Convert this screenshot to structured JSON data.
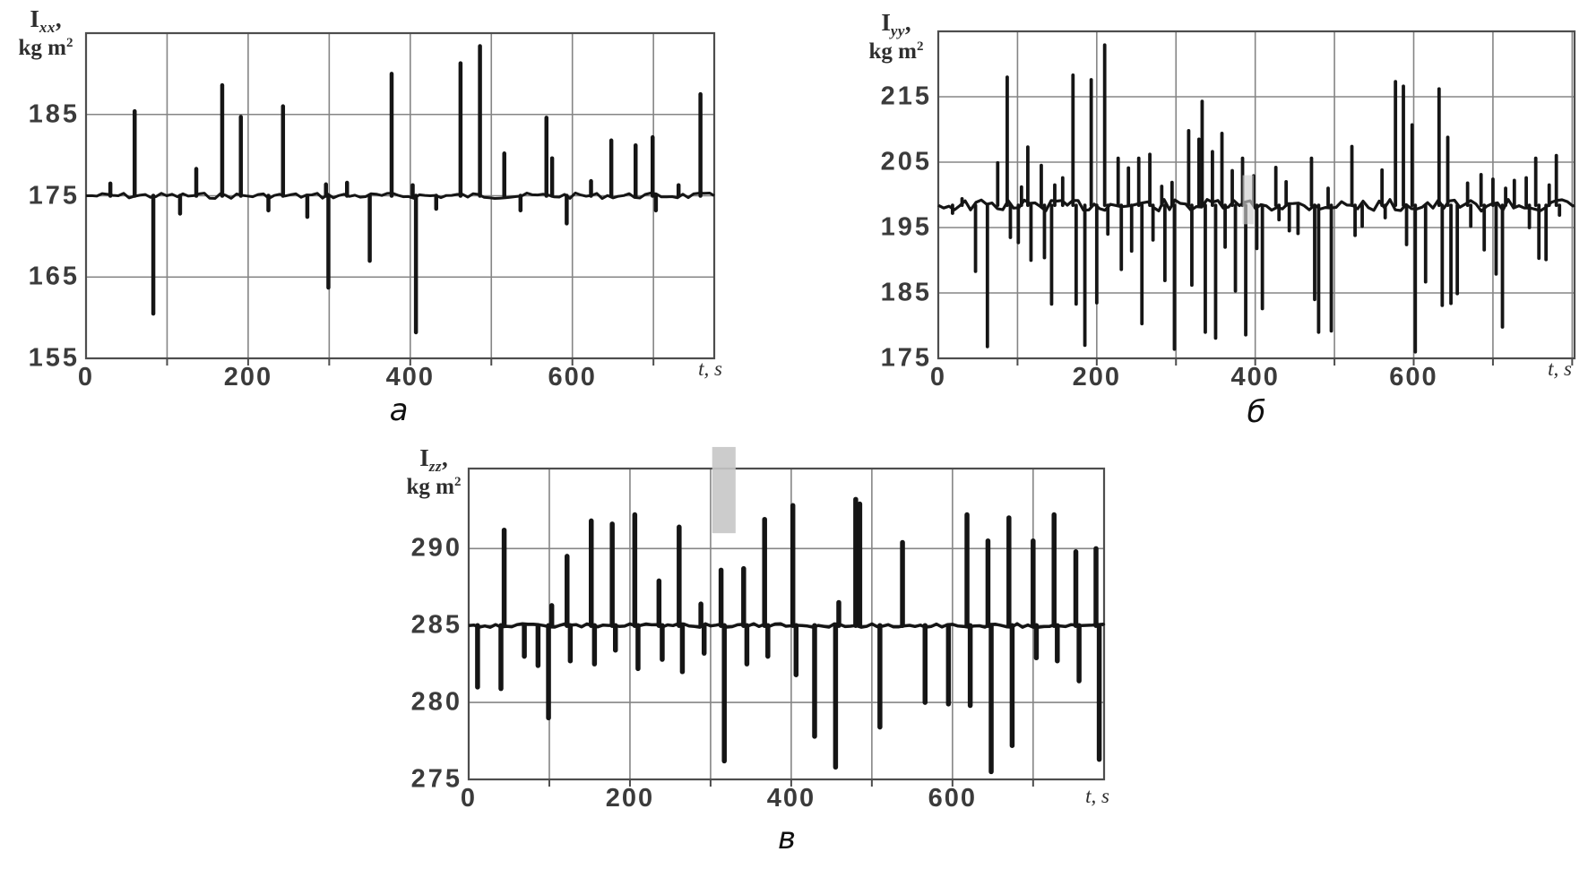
{
  "figure": {
    "background": "#ffffff"
  },
  "charts": [
    {
      "id": "a",
      "caption": "a",
      "xlabel": "t, s",
      "ylabel": {
        "base": "I",
        "sub": "xx",
        "comma": ",",
        "unit": "kg m",
        "unit_sup": "2"
      }
    },
    {
      "id": "b",
      "caption": "б",
      "xlabel": "t, s",
      "ylabel": {
        "base": "I",
        "sub": "yy",
        "comma": ",",
        "unit": "kg m",
        "unit_sup": "2"
      }
    },
    {
      "id": "v",
      "caption": "в",
      "xlabel": "t, s",
      "ylabel": {
        "base": "I",
        "sub": "zz",
        "comma": ",",
        "unit": "kg m",
        "unit_sup": "2"
      }
    }
  ],
  "colors": {
    "line": "#151515",
    "grid": "#858585",
    "border": "#4d4d4d",
    "tick_text": "#3b3b3b",
    "artifact_gray": "#c6c6c6"
  },
  "chart_data": [
    {
      "panel": "a",
      "type": "line",
      "signal": "Ixx",
      "units": "kg m^2",
      "xlabel": "t, s",
      "ylabel": "Ixx, kg m2",
      "xlim": [
        0,
        775
      ],
      "ylim": [
        155,
        195
      ],
      "x_gridlines": [
        100,
        200,
        300,
        400,
        500,
        600,
        700
      ],
      "y_gridlines": [
        165,
        175,
        185
      ],
      "x_ticks": [
        {
          "t": 0,
          "label": "0"
        },
        {
          "t": 200,
          "label": "200"
        },
        {
          "t": 400,
          "label": "400"
        },
        {
          "t": 600,
          "label": "600"
        }
      ],
      "y_ticks": [
        {
          "v": 155,
          "label": "155"
        },
        {
          "v": 165,
          "label": "165"
        },
        {
          "v": 175,
          "label": "175"
        },
        {
          "v": 185,
          "label": "185"
        }
      ],
      "baseline": 175,
      "noise_amp": 0.35,
      "seed": 7,
      "artifact": null,
      "spikes": [
        [
          30,
          176.5
        ],
        [
          60,
          185.4
        ],
        [
          83,
          160.5
        ],
        [
          116,
          172.8
        ],
        [
          136,
          178.3
        ],
        [
          168,
          188.6
        ],
        [
          191,
          184.7
        ],
        [
          225,
          173.2
        ],
        [
          243,
          186.0
        ],
        [
          273,
          172.4
        ],
        [
          296,
          176.4
        ],
        [
          299,
          163.7
        ],
        [
          322,
          176.6
        ],
        [
          350,
          167.0
        ],
        [
          377,
          190.0
        ],
        [
          403,
          176.3
        ],
        [
          407,
          158.2
        ],
        [
          432,
          173.4
        ],
        [
          462,
          191.3
        ],
        [
          486,
          193.4
        ],
        [
          516,
          180.2
        ],
        [
          536,
          173.2
        ],
        [
          568,
          184.6
        ],
        [
          575,
          179.6
        ],
        [
          593,
          171.6
        ],
        [
          623,
          176.8
        ],
        [
          648,
          181.8
        ],
        [
          678,
          181.2
        ],
        [
          699,
          182.2
        ],
        [
          703,
          173.2
        ],
        [
          731,
          176.3
        ],
        [
          758,
          187.5
        ]
      ]
    },
    {
      "panel": "b",
      "type": "line",
      "signal": "Iyy",
      "units": "kg m^2",
      "xlabel": "t, s",
      "ylabel": "Iyy, kg m2",
      "xlim": [
        0,
        803
      ],
      "ylim": [
        175,
        225
      ],
      "x_gridlines": [
        100,
        200,
        300,
        400,
        500,
        600,
        700,
        800
      ],
      "y_gridlines": [
        185,
        195,
        205,
        215
      ],
      "x_ticks": [
        {
          "t": 0,
          "label": "0"
        },
        {
          "t": 200,
          "label": "200"
        },
        {
          "t": 400,
          "label": "400"
        },
        {
          "t": 600,
          "label": "600"
        }
      ],
      "y_ticks": [
        {
          "v": 175,
          "label": "175"
        },
        {
          "v": 185,
          "label": "185"
        },
        {
          "v": 195,
          "label": "195"
        },
        {
          "v": 205,
          "label": "205"
        },
        {
          "v": 215,
          "label": "215"
        }
      ],
      "baseline": 198.4,
      "noise_amp": 0.9,
      "seed": 13,
      "artifact": {
        "t0": 384,
        "t1": 398,
        "v0": 195.5,
        "v1": 203.0,
        "color": "#cccccc",
        "opacity": 0.65
      },
      "spikes": [
        [
          18,
          197.2
        ],
        [
          30,
          199.4
        ],
        [
          47,
          188.3
        ],
        [
          62,
          176.8
        ],
        [
          75,
          204.9
        ],
        [
          87,
          218.0
        ],
        [
          91,
          193.5
        ],
        [
          101,
          192.7
        ],
        [
          105,
          201.2
        ],
        [
          113,
          207.3
        ],
        [
          117,
          190.0
        ],
        [
          130,
          204.5
        ],
        [
          134,
          190.4
        ],
        [
          143,
          183.3
        ],
        [
          147,
          201.5
        ],
        [
          157,
          202.6
        ],
        [
          170,
          218.3
        ],
        [
          174,
          183.3
        ],
        [
          185,
          177.0
        ],
        [
          193,
          217.6
        ],
        [
          200,
          183.5
        ],
        [
          210,
          222.9
        ],
        [
          214,
          194.0
        ],
        [
          227,
          205.6
        ],
        [
          231,
          188.6
        ],
        [
          240,
          204.1
        ],
        [
          244,
          191.4
        ],
        [
          253,
          205.6
        ],
        [
          257,
          180.3
        ],
        [
          267,
          206.2
        ],
        [
          271,
          193.1
        ],
        [
          282,
          201.3
        ],
        [
          286,
          186.9
        ],
        [
          295,
          201.9
        ],
        [
          298,
          176.4
        ],
        [
          316,
          209.8
        ],
        [
          320,
          186.2
        ],
        [
          329,
          208.5
        ],
        [
          333,
          214.3
        ],
        [
          337,
          179.0
        ],
        [
          346,
          206.6
        ],
        [
          350,
          178.1
        ],
        [
          358,
          209.4
        ],
        [
          362,
          192.0
        ],
        [
          371,
          203.7
        ],
        [
          375,
          185.3
        ],
        [
          384,
          205.6
        ],
        [
          388,
          178.6
        ],
        [
          398,
          202.9
        ],
        [
          402,
          191.8
        ],
        [
          409,
          182.6
        ],
        [
          426,
          204.2
        ],
        [
          430,
          196.2
        ],
        [
          439,
          202.0
        ],
        [
          443,
          194.5
        ],
        [
          454,
          194.1
        ],
        [
          471,
          205.6
        ],
        [
          475,
          184.0
        ],
        [
          480,
          179.0
        ],
        [
          492,
          201.0
        ],
        [
          496,
          179.2
        ],
        [
          522,
          207.4
        ],
        [
          526,
          193.8
        ],
        [
          535,
          195.2
        ],
        [
          560,
          203.8
        ],
        [
          564,
          196.5
        ],
        [
          577,
          217.3
        ],
        [
          587,
          216.6
        ],
        [
          591,
          192.4
        ],
        [
          598,
          210.7
        ],
        [
          602,
          176.0
        ],
        [
          615,
          186.7
        ],
        [
          632,
          216.2
        ],
        [
          636,
          183.1
        ],
        [
          643,
          208.8
        ],
        [
          647,
          183.4
        ],
        [
          655,
          184.9
        ],
        [
          668,
          201.8
        ],
        [
          672,
          195.2
        ],
        [
          685,
          203.1
        ],
        [
          689,
          191.6
        ],
        [
          700,
          202.4
        ],
        [
          704,
          187.9
        ],
        [
          712,
          179.8
        ],
        [
          716,
          201.0
        ],
        [
          727,
          202.2
        ],
        [
          742,
          202.6
        ],
        [
          746,
          195.0
        ],
        [
          754,
          205.6
        ],
        [
          758,
          190.3
        ],
        [
          767,
          190.1
        ],
        [
          771,
          201.5
        ],
        [
          780,
          206.0
        ],
        [
          784,
          196.9
        ]
      ]
    },
    {
      "panel": "v",
      "type": "line",
      "signal": "Izz",
      "units": "kg m^2",
      "xlabel": "t, s",
      "ylabel": "Izz, kg m2",
      "xlim": [
        0,
        788
      ],
      "ylim": [
        275,
        295.2
      ],
      "x_gridlines": [
        100,
        200,
        300,
        400,
        500,
        600,
        700
      ],
      "y_gridlines": [
        280,
        285,
        290
      ],
      "x_ticks": [
        {
          "t": 0,
          "label": "0"
        },
        {
          "t": 200,
          "label": "200"
        },
        {
          "t": 400,
          "label": "400"
        },
        {
          "t": 600,
          "label": "600"
        }
      ],
      "y_ticks": [
        {
          "v": 275,
          "label": "275"
        },
        {
          "v": 280,
          "label": "280"
        },
        {
          "v": 285,
          "label": "285"
        },
        {
          "v": 290,
          "label": "290"
        }
      ],
      "baseline": 285,
      "noise_amp": 0.12,
      "seed": 29,
      "artifact": {
        "t0": 302,
        "t1": 331,
        "v0": 291.0,
        "v1": 296.6,
        "color": "#c6c6c6",
        "opacity": 0.9
      },
      "spikes": [
        [
          11,
          281.0
        ],
        [
          40,
          280.9
        ],
        [
          44,
          291.2
        ],
        [
          69,
          283.0
        ],
        [
          86,
          282.4
        ],
        [
          99,
          279.0
        ],
        [
          103,
          286.3
        ],
        [
          122,
          289.5
        ],
        [
          126,
          282.7
        ],
        [
          152,
          291.8
        ],
        [
          156,
          282.5
        ],
        [
          178,
          291.6
        ],
        [
          182,
          283.4
        ],
        [
          206,
          292.2
        ],
        [
          210,
          282.2
        ],
        [
          236,
          287.9
        ],
        [
          240,
          282.8
        ],
        [
          261,
          291.4
        ],
        [
          265,
          282.0
        ],
        [
          288,
          286.4
        ],
        [
          292,
          283.2
        ],
        [
          313,
          288.6
        ],
        [
          317,
          276.2
        ],
        [
          341,
          288.7
        ],
        [
          345,
          282.5
        ],
        [
          367,
          291.9
        ],
        [
          371,
          283.0
        ],
        [
          402,
          292.8
        ],
        [
          406,
          281.8
        ],
        [
          429,
          277.8
        ],
        [
          455,
          275.8
        ],
        [
          459,
          286.5
        ],
        [
          480,
          293.2
        ],
        [
          485,
          292.9
        ],
        [
          510,
          278.4
        ],
        [
          538,
          290.4
        ],
        [
          566,
          280.0
        ],
        [
          595,
          279.9
        ],
        [
          618,
          292.2
        ],
        [
          622,
          279.8
        ],
        [
          644,
          290.5
        ],
        [
          648,
          275.5
        ],
        [
          670,
          292.0
        ],
        [
          674,
          277.2
        ],
        [
          700,
          290.5
        ],
        [
          704,
          282.9
        ],
        [
          726,
          292.2
        ],
        [
          730,
          282.7
        ],
        [
          753,
          289.8
        ],
        [
          757,
          281.4
        ],
        [
          778,
          290.0
        ],
        [
          782,
          276.3
        ]
      ]
    }
  ]
}
